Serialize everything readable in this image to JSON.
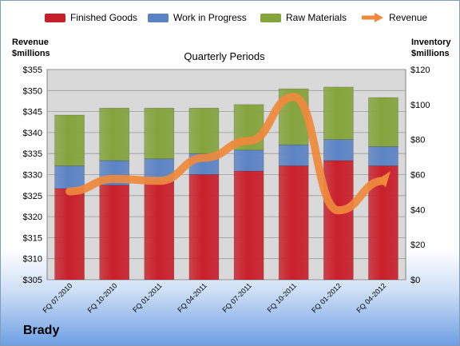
{
  "company": "Brady",
  "legend": {
    "finished_goods": "Finished Goods",
    "wip": "Work in Progress",
    "raw": "Raw Materials",
    "revenue": "Revenue"
  },
  "left_axis_title": [
    "Revenue",
    "$millions"
  ],
  "right_axis_title": [
    "Inventory",
    "$millions"
  ],
  "colors": {
    "finished_goods": "#c8202b",
    "wip": "#5b83c4",
    "raw": "#84a43c",
    "revenue": "#f0893c",
    "plot_bg": "#d9d9d9"
  },
  "chart_data": {
    "type": "bar",
    "title": "Quarterly Periods",
    "categories": [
      "FQ 07-2010",
      "FQ 10-2010",
      "FQ 01-2011",
      "FQ 04-2011",
      "FQ 07-2011",
      "FQ 10-2011",
      "FQ 01-2012",
      "FQ 04-2012"
    ],
    "series": [
      {
        "name": "Finished Goods",
        "axis": "right",
        "values": [
          52,
          54,
          56,
          60,
          62,
          65,
          68,
          65
        ]
      },
      {
        "name": "Work in Progress",
        "axis": "right",
        "values": [
          13,
          14,
          13,
          12,
          12,
          12,
          12,
          11
        ]
      },
      {
        "name": "Raw Materials",
        "axis": "right",
        "values": [
          29,
          30,
          29,
          26,
          26,
          32,
          30,
          28
        ]
      },
      {
        "name": "Revenue",
        "type": "line",
        "axis": "left",
        "values": [
          326.0,
          329.0,
          328.5,
          334.0,
          338.0,
          348.5,
          321.5,
          328.5
        ]
      }
    ],
    "y_left": {
      "label": "Revenue $millions",
      "min": 305,
      "max": 355,
      "step": 5,
      "format": "$"
    },
    "y_right": {
      "label": "Inventory $millions",
      "min": 0,
      "max": 120,
      "step": 20,
      "format": "$"
    },
    "stacked": true,
    "grid": true,
    "legend_position": "top"
  }
}
